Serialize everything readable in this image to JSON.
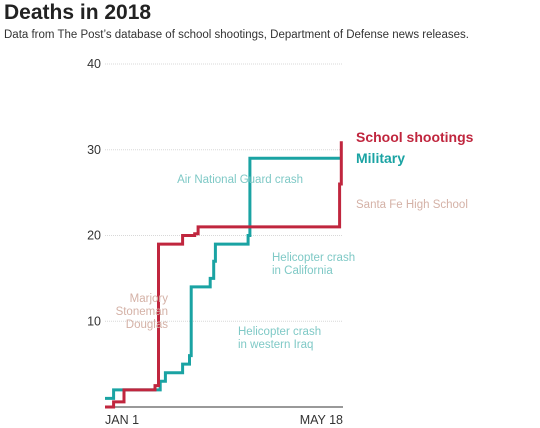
{
  "header": {
    "title": "Deaths in 2018",
    "subtitle": "Data from The Post’s database of school shootings, Department of Defense news releases."
  },
  "colors": {
    "school": "#c0263e",
    "military": "#1aa3a3",
    "grid": "#d8d8d8",
    "axis": "#333333",
    "annotation_military": "#7fc9c6",
    "annotation_school": "#d4b1a6"
  },
  "chart_data": {
    "type": "line",
    "title": "Deaths in 2018",
    "xlabel": "",
    "ylabel": "",
    "x_tick_labels": [
      "JAN 1",
      "MAY 18"
    ],
    "xlim": [
      0,
      138
    ],
    "ylim": [
      0,
      40
    ],
    "yticks": [
      10,
      20,
      30,
      40
    ],
    "grid": true,
    "series": [
      {
        "name": "School shootings",
        "color_key": "school",
        "points": [
          [
            0,
            0
          ],
          [
            5,
            0
          ],
          [
            5,
            0.6
          ],
          [
            11,
            0.6
          ],
          [
            11,
            2
          ],
          [
            29,
            2
          ],
          [
            29,
            2.5
          ],
          [
            31,
            2.5
          ],
          [
            31,
            19
          ],
          [
            44,
            19
          ],
          [
            44,
            19
          ],
          [
            45,
            19
          ],
          [
            45,
            20
          ],
          [
            52,
            20
          ],
          [
            52,
            20.2
          ],
          [
            54,
            20.2
          ],
          [
            54,
            21
          ],
          [
            136,
            21
          ],
          [
            136,
            26
          ],
          [
            137,
            26
          ],
          [
            137,
            31
          ]
        ]
      },
      {
        "name": "Military",
        "color_key": "military",
        "points": [
          [
            0,
            1
          ],
          [
            5,
            1
          ],
          [
            5,
            2
          ],
          [
            32,
            2
          ],
          [
            32,
            3
          ],
          [
            35,
            3
          ],
          [
            35,
            4
          ],
          [
            45,
            4
          ],
          [
            45,
            5
          ],
          [
            49,
            5
          ],
          [
            49,
            6
          ],
          [
            50,
            6
          ],
          [
            50,
            14
          ],
          [
            61,
            14
          ],
          [
            61,
            15
          ],
          [
            63,
            15
          ],
          [
            63,
            17
          ],
          [
            64,
            17
          ],
          [
            64,
            19
          ],
          [
            83,
            19
          ],
          [
            83,
            20
          ],
          [
            84,
            20
          ],
          [
            84,
            29
          ],
          [
            137,
            29
          ]
        ]
      }
    ],
    "annotations": [
      {
        "text": "Air National Guard crash",
        "color_key": "annotation_military"
      },
      {
        "text": "Santa Fe High School",
        "color_key": "annotation_school"
      },
      {
        "text": "Helicopter crash in California",
        "lines": [
          "Helicopter crash",
          "in California"
        ],
        "color_key": "annotation_military"
      },
      {
        "text": "Marjory Stoneman Douglas",
        "lines": [
          "Marjory",
          "Stoneman",
          "Douglas"
        ],
        "color_key": "annotation_school"
      },
      {
        "text": "Helicopter crash in western Iraq",
        "lines": [
          "Helicopter crash",
          "in western Iraq"
        ],
        "color_key": "annotation_military"
      }
    ]
  }
}
